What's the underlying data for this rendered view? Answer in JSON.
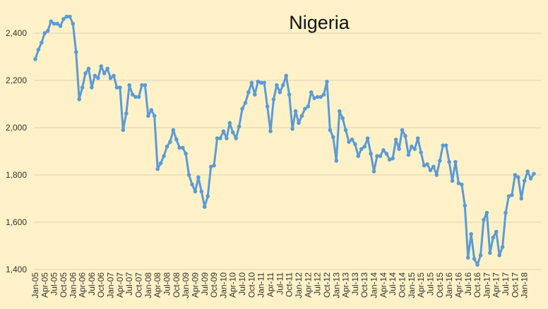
{
  "chart_data": {
    "type": "line",
    "title": "Nigeria",
    "xlabel": "",
    "ylabel": "",
    "ylim": [
      1400,
      2500
    ],
    "yticks": [
      1400,
      1600,
      1800,
      2000,
      2200,
      2400
    ],
    "ytick_labels": [
      "1,400",
      "1,600",
      "1,800",
      "2,000",
      "2,200",
      "2,400"
    ],
    "xtick_labels": [
      "Jan-05",
      "Apr-05",
      "Jul-05",
      "Oct-05",
      "Jan-06",
      "Apr-06",
      "Jul-06",
      "Oct-06",
      "Jan-07",
      "Apr-07",
      "Jul-07",
      "Oct-07",
      "Jan-08",
      "Apr-08",
      "Jul-08",
      "Oct-08",
      "Jan-09",
      "Apr-09",
      "Jul-09",
      "Oct-09",
      "Jan-10",
      "Apr-10",
      "Jul-10",
      "Oct-10",
      "Jan-11",
      "Apr-11",
      "Jul-11",
      "Oct-11",
      "Jan-12",
      "Apr-12",
      "Jul-12",
      "Oct-12",
      "Jan-13",
      "Apr-13",
      "Jul-13",
      "Oct-13",
      "Jan-14",
      "Apr-14",
      "Jul-14",
      "Oct-14",
      "Jan-15",
      "Apr-15",
      "Jul-15",
      "Oct-15",
      "Jan-16",
      "Apr-16",
      "Jul-16",
      "Oct-16",
      "Jan-17",
      "Apr-17",
      "Jul-17",
      "Oct-17",
      "Jan-18"
    ],
    "grid": true,
    "legend": "none",
    "line_color": "#5b9bd5",
    "series": [
      {
        "values": [
          2290,
          2330,
          2360,
          2400,
          2410,
          2450,
          2440,
          2440,
          2430,
          2460,
          2470,
          2470,
          2440,
          2320,
          2120,
          2170,
          2230,
          2250,
          2170,
          2220,
          2210,
          2260,
          2230,
          2250,
          2210,
          2220,
          2170,
          2170,
          1990,
          2060,
          2180,
          2140,
          2130,
          2130,
          2180,
          2180,
          2050,
          2075,
          2050,
          1825,
          1850,
          1880,
          1920,
          1940,
          1990,
          1950,
          1915,
          1915,
          1890,
          1800,
          1760,
          1730,
          1790,
          1730,
          1665,
          1710,
          1835,
          1840,
          1955,
          1955,
          1985,
          1955,
          2020,
          1980,
          1955,
          2005,
          2080,
          2105,
          2150,
          2190,
          2140,
          2195,
          2190,
          2190,
          2090,
          1985,
          2120,
          2180,
          2150,
          2180,
          2220,
          2140,
          1995,
          2070,
          2020,
          2050,
          2080,
          2090,
          2150,
          2125,
          2130,
          2130,
          2140,
          2195,
          1990,
          1960,
          1860,
          2070,
          2040,
          1990,
          1940,
          1950,
          1930,
          1880,
          1910,
          1920,
          1955,
          1890,
          1815,
          1880,
          1880,
          1905,
          1890,
          1865,
          1870,
          1950,
          1910,
          1990,
          1965,
          1885,
          1920,
          1910,
          1955,
          1895,
          1840,
          1845,
          1820,
          1835,
          1800,
          1860,
          1925,
          1925,
          1855,
          1775,
          1855,
          1765,
          1760,
          1670,
          1450,
          1550,
          1445,
          1420,
          1460,
          1610,
          1640,
          1470,
          1535,
          1560,
          1460,
          1495,
          1640,
          1710,
          1715,
          1800,
          1790,
          1700,
          1775,
          1815,
          1785,
          1805
        ]
      }
    ]
  }
}
